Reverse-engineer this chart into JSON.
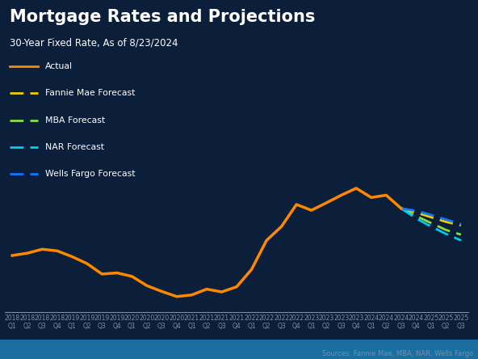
{
  "title": "Mortgage Rates and Projections",
  "subtitle": "30-Year Fixed Rate, As of 8/23/2024",
  "source": "Sources: Fannie Mae, MBA, NAR, Wells Fargo",
  "background_color": "#0b1f3a",
  "text_color": "#ffffff",
  "tick_label_color": "#7a8fa8",
  "x_labels": [
    "2018\nQ1",
    "2018\nQ2",
    "2018\nQ3",
    "2018\nQ4",
    "2019\nQ1",
    "2019\nQ2",
    "2019\nQ3",
    "2019\nQ4",
    "2020\nQ1",
    "2020\nQ2",
    "2020\nQ3",
    "2020\nQ4",
    "2021\nQ1",
    "2021\nQ2",
    "2021\nQ3",
    "2021\nQ4",
    "2022\nQ1",
    "2022\nQ2",
    "2022\nQ3",
    "2022\nQ4",
    "2023\nQ1",
    "2023\nQ2",
    "2023\nQ3",
    "2023\nQ4",
    "2024\nQ1",
    "2024\nQ2",
    "2024\nQ3",
    "2024\nQ4",
    "2025\nQ1",
    "2025\nQ2",
    "2025\nQ3"
  ],
  "actual_x": [
    0,
    1,
    2,
    3,
    4,
    5,
    6,
    7,
    8,
    9,
    10,
    11,
    12,
    13,
    14,
    15,
    16,
    17,
    18,
    19,
    20,
    21,
    22,
    23,
    24,
    25,
    26
  ],
  "actual_y": [
    4.45,
    4.55,
    4.72,
    4.65,
    4.4,
    4.1,
    3.65,
    3.7,
    3.55,
    3.15,
    2.9,
    2.68,
    2.75,
    3.0,
    2.88,
    3.1,
    3.85,
    5.1,
    5.7,
    6.65,
    6.4,
    6.72,
    7.05,
    7.35,
    6.95,
    7.05,
    6.48
  ],
  "fannie_mae_x": [
    26,
    27,
    28,
    29,
    30
  ],
  "fannie_mae_y": [
    6.48,
    6.3,
    6.1,
    5.9,
    5.75
  ],
  "fannie_mae_color": "#eecc00",
  "mba_x": [
    26,
    27,
    28,
    29,
    30
  ],
  "mba_y": [
    6.48,
    6.15,
    5.85,
    5.55,
    5.35
  ],
  "mba_color": "#88dd44",
  "nar_x": [
    26,
    27,
    28,
    29,
    30
  ],
  "nar_y": [
    6.48,
    6.05,
    5.7,
    5.38,
    5.1
  ],
  "nar_color": "#00ccee",
  "wells_fargo_x": [
    26,
    27,
    28,
    29,
    30
  ],
  "wells_fargo_y": [
    6.48,
    6.38,
    6.2,
    6.0,
    5.8
  ],
  "wells_fargo_color": "#1177ff",
  "actual_color": "#ff8800",
  "ylim": [
    2.0,
    8.5
  ],
  "legend_labels": [
    "Actual",
    "Fannie Mae Forecast",
    "MBA Forecast",
    "NAR Forecast",
    "Wells Fargo Forecast"
  ]
}
